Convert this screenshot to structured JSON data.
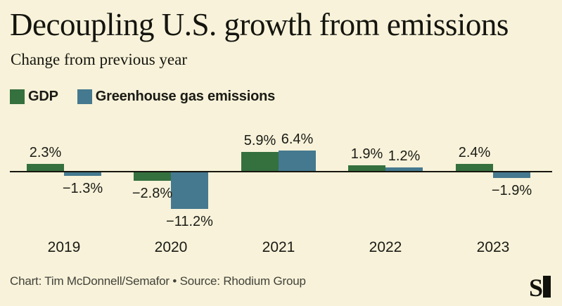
{
  "header": {
    "title": "Decoupling U.S. growth from emissions",
    "subtitle": "Change from previous year"
  },
  "legend": [
    {
      "label": "GDP",
      "color": "#35703f"
    },
    {
      "label": "Greenhouse gas emissions",
      "color": "#45798f"
    }
  ],
  "chart_data": {
    "type": "bar",
    "categories": [
      "2019",
      "2020",
      "2021",
      "2022",
      "2023"
    ],
    "series": [
      {
        "name": "GDP",
        "color": "#35703f",
        "values": [
          2.3,
          -2.8,
          5.9,
          1.9,
          2.4
        ]
      },
      {
        "name": "Greenhouse gas emissions",
        "color": "#45798f",
        "values": [
          -1.3,
          -11.2,
          6.4,
          1.2,
          -1.9
        ]
      }
    ],
    "value_labels": [
      [
        "2.3%",
        "−2.8%",
        "5.9%",
        "1.9%",
        "2.4%"
      ],
      [
        "−1.3%",
        "−11.2%",
        "6.4%",
        "1.2%",
        "−1.9%"
      ]
    ],
    "title": "Decoupling U.S. growth from emissions",
    "subtitle": "Change from previous year",
    "xlabel": "",
    "ylabel": "",
    "ylim": [
      -12,
      7
    ],
    "baseline": 0,
    "grid": false,
    "legend_position": "top-left",
    "unit": "%"
  },
  "footer": {
    "credit": "Chart: Tim McDonnell/Semafor • Source: Rhodium Group",
    "logo": "semafor-logo"
  },
  "colors": {
    "background": "#f7f2d9",
    "axis": "#17170f",
    "text": "#1b1b15",
    "footer_text": "#42423a",
    "gdp": "#35703f",
    "emissions": "#45798f"
  }
}
